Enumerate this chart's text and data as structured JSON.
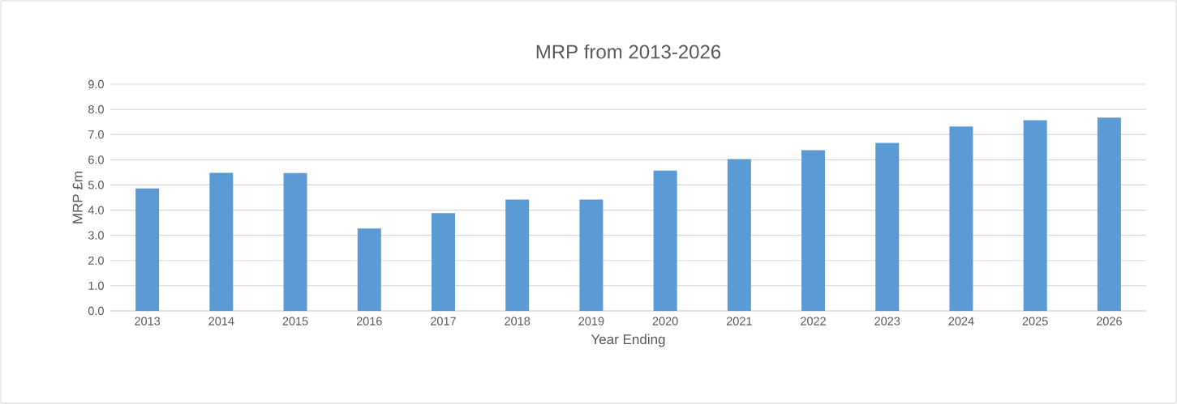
{
  "chart_data": {
    "type": "bar",
    "title": "MRP from 2013-2026",
    "xlabel": "Year Ending",
    "ylabel": "MRP £m",
    "categories": [
      "2013",
      "2014",
      "2015",
      "2016",
      "2017",
      "2018",
      "2019",
      "2020",
      "2021",
      "2022",
      "2023",
      "2024",
      "2025",
      "2026"
    ],
    "values": [
      4.86,
      5.48,
      5.47,
      3.27,
      3.88,
      4.42,
      4.42,
      5.57,
      6.03,
      6.38,
      6.67,
      7.32,
      7.57,
      7.67
    ],
    "color": "#5b9bd5",
    "ylim": [
      0,
      9
    ],
    "yticks": [
      {
        "value": 0,
        "label": "0.0"
      },
      {
        "value": 1,
        "label": "1.0"
      },
      {
        "value": 2,
        "label": "2.0"
      },
      {
        "value": 3,
        "label": "3.0"
      },
      {
        "value": 4,
        "label": "4.0"
      },
      {
        "value": 5,
        "label": "5.0"
      },
      {
        "value": 6,
        "label": "6.0"
      },
      {
        "value": 7,
        "label": "7.0"
      },
      {
        "value": 8,
        "label": "8.0"
      },
      {
        "value": 9,
        "label": "9.0"
      }
    ],
    "grid": "y"
  }
}
